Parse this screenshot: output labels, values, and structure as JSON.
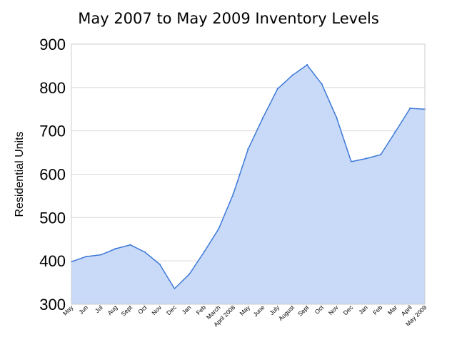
{
  "chart_data": {
    "type": "area",
    "title": "May 2007 to May 2009 Inventory Levels",
    "xlabel": "",
    "ylabel": "Residential Units",
    "ylim": [
      300,
      900
    ],
    "yticks": [
      300,
      400,
      500,
      600,
      700,
      800,
      900
    ],
    "grid": true,
    "legend": "none",
    "colors": {
      "line": "#3c78d8",
      "fill": "#c9daf8",
      "grid": "#d9d9d9"
    },
    "categories": [
      "May",
      "Jun",
      "Jul",
      "Aug",
      "Sept",
      "Oct",
      "Nov",
      "Dec",
      "Jan",
      "Feb",
      "March",
      "April 2008",
      "May",
      "June",
      "July",
      "August",
      "Sept",
      "Oct",
      "Nov",
      "Dec",
      "Jan",
      "Feb",
      "Mar",
      "April",
      "May 2009"
    ],
    "values": [
      398,
      410,
      414,
      428,
      437,
      420,
      392,
      336,
      369,
      420,
      474,
      555,
      658,
      730,
      797,
      828,
      852,
      808,
      731,
      629,
      636,
      645,
      698,
      752,
      750
    ]
  }
}
